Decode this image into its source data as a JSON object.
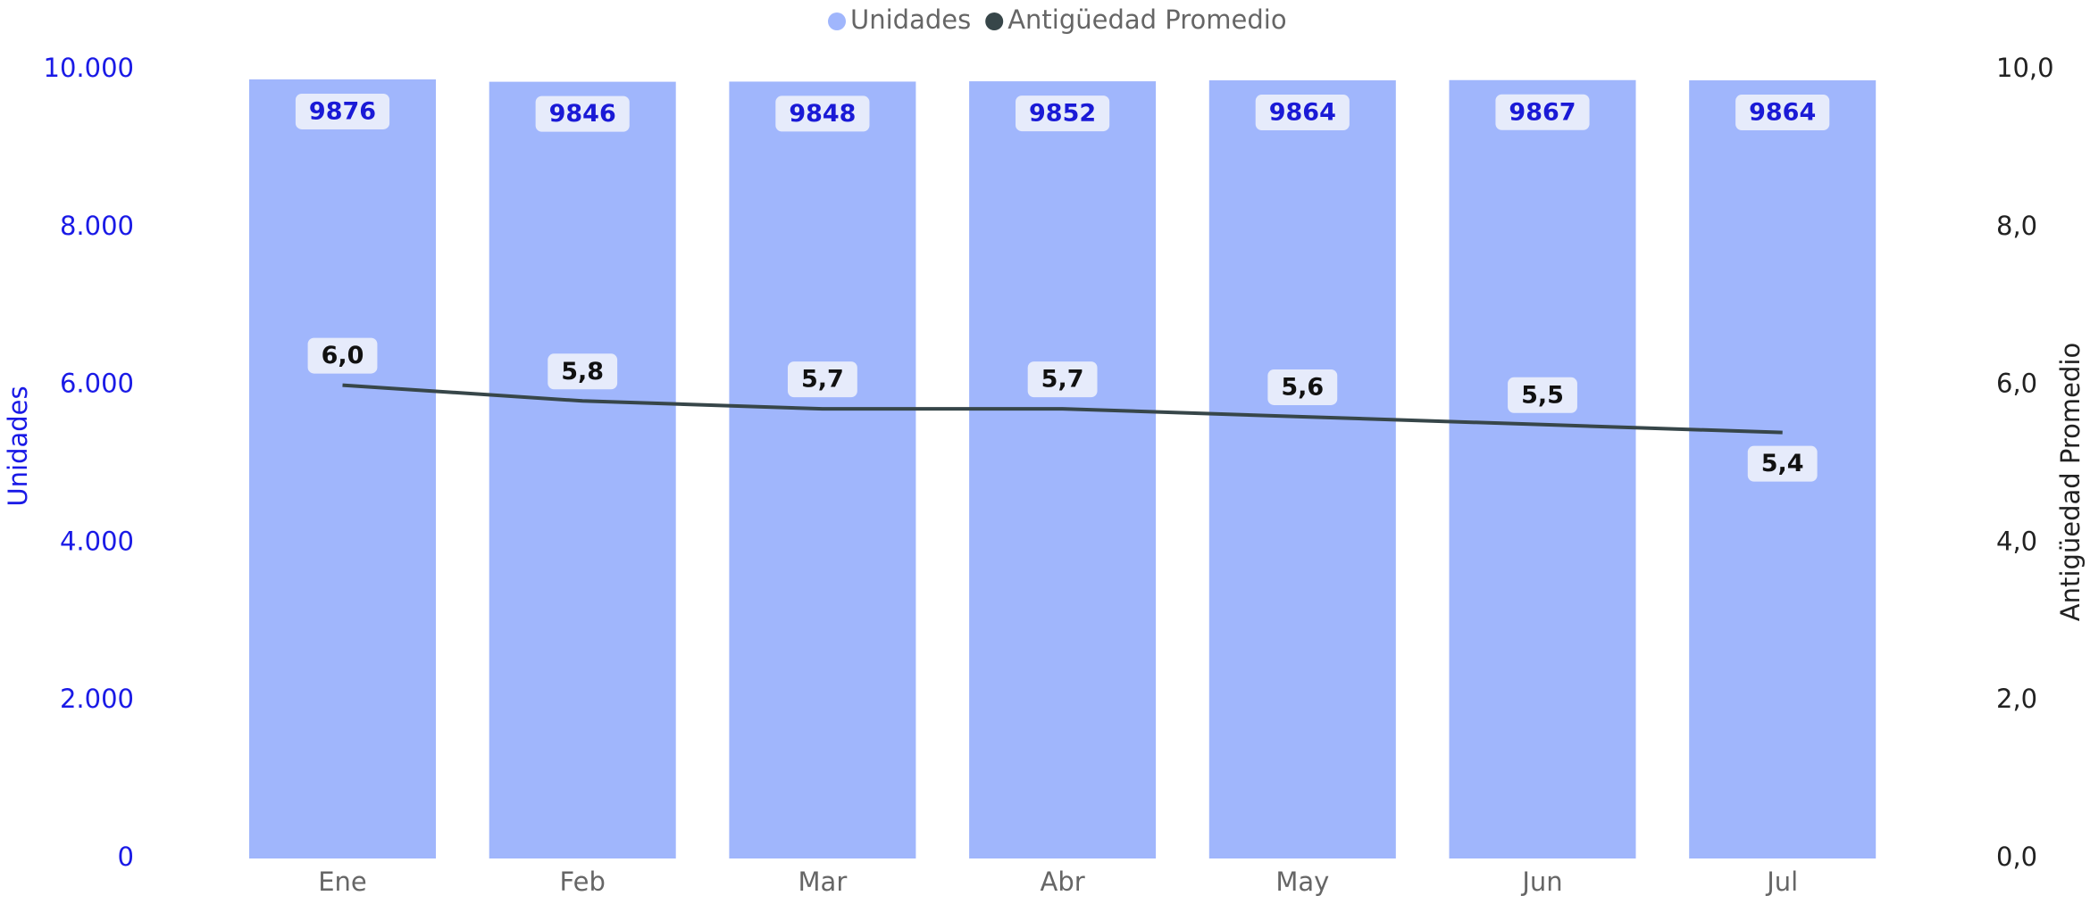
{
  "chart_data": {
    "type": "bar_line",
    "categories": [
      "Ene",
      "Feb",
      "Mar",
      "Abr",
      "May",
      "Jun",
      "Jul"
    ],
    "series": [
      {
        "name": "Unidades",
        "color": "#a0b6fc",
        "values": [
          9876,
          9846,
          9848,
          9852,
          9864,
          9867,
          9864
        ]
      },
      {
        "name": "Antigüedad Promedio",
        "color": "#374649",
        "axis": "y2",
        "values": [
          6.0,
          5.8,
          5.7,
          5.7,
          5.6,
          5.5,
          5.4
        ],
        "value_labels": [
          "6,0",
          "5,8",
          "5,7",
          "5,7",
          "5,6",
          "5,5",
          "5,4"
        ]
      }
    ],
    "ylabel": "Unidades",
    "y2label": "Antigüedad Promedio",
    "ylim": [
      0,
      10000
    ],
    "yticks": [
      0,
      {
        "value": 2000,
        "label": "2.000"
      },
      {
        "value": 4000,
        "label": "4.000"
      },
      {
        "value": 6000,
        "label": "6.000"
      },
      {
        "value": 8000,
        "label": "8.000"
      },
      {
        "value": 10000,
        "label": "10.000"
      }
    ],
    "y2lim": [
      0,
      10
    ],
    "y2ticks": [
      {
        "value": 0,
        "label": "0,0"
      },
      {
        "value": 2,
        "label": "2,0"
      },
      {
        "value": 4,
        "label": "4,0"
      },
      {
        "value": 6,
        "label": "6,0"
      },
      {
        "value": 8,
        "label": "8,0"
      },
      {
        "value": 10,
        "label": "10,0"
      }
    ],
    "legend": "top"
  }
}
